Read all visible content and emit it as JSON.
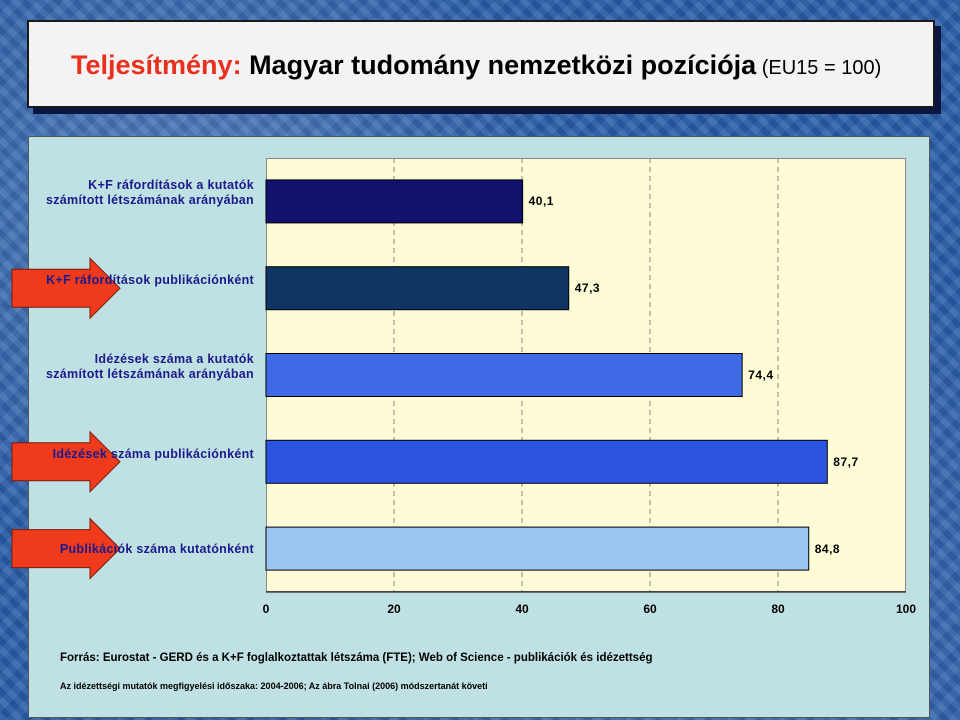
{
  "header": {
    "title_lead": "Teljesítmény:",
    "title_main": " Magyar tudomány nemzetközi pozíciója",
    "title_suffix": " (EU15 = 100)"
  },
  "chart_data": {
    "type": "bar",
    "orientation": "horizontal",
    "categories": [
      "K+F ráfordítások a kutatók számított létszámának arányában",
      "K+F ráfordítások publikációnként",
      "Idézések száma a kutatók számított létszámának arányában",
      "Idézések száma publikációnként",
      "Publikációk száma kutatónként"
    ],
    "values": [
      40.1,
      47.3,
      74.4,
      87.7,
      84.8
    ],
    "value_labels": [
      "40,1",
      "47,3",
      "74,4",
      "87,7",
      "84,8"
    ],
    "bar_colors": [
      "#12126e",
      "#0f3563",
      "#3f6ae6",
      "#2b55e0",
      "#9cc6f2"
    ],
    "highlight_arrows": [
      false,
      true,
      false,
      true,
      true
    ],
    "arrow_color": "#f03a1c",
    "xlim": [
      0,
      100
    ],
    "xticks": [
      "0",
      "20",
      "40",
      "60",
      "80",
      "100"
    ],
    "grid": "vertical dashed",
    "plot_background": "#fefcd7"
  },
  "footer": {
    "source": "Forrás: Eurostat - GERD és a K+F foglalkoztattak létszáma (FTE); Web of Science - publikációk és idézettség",
    "note": "Az idézettségi mutatók megfigyelési időszaka: 2004-2006; Az ábra Tolnai (2006) módszertanát követi"
  }
}
